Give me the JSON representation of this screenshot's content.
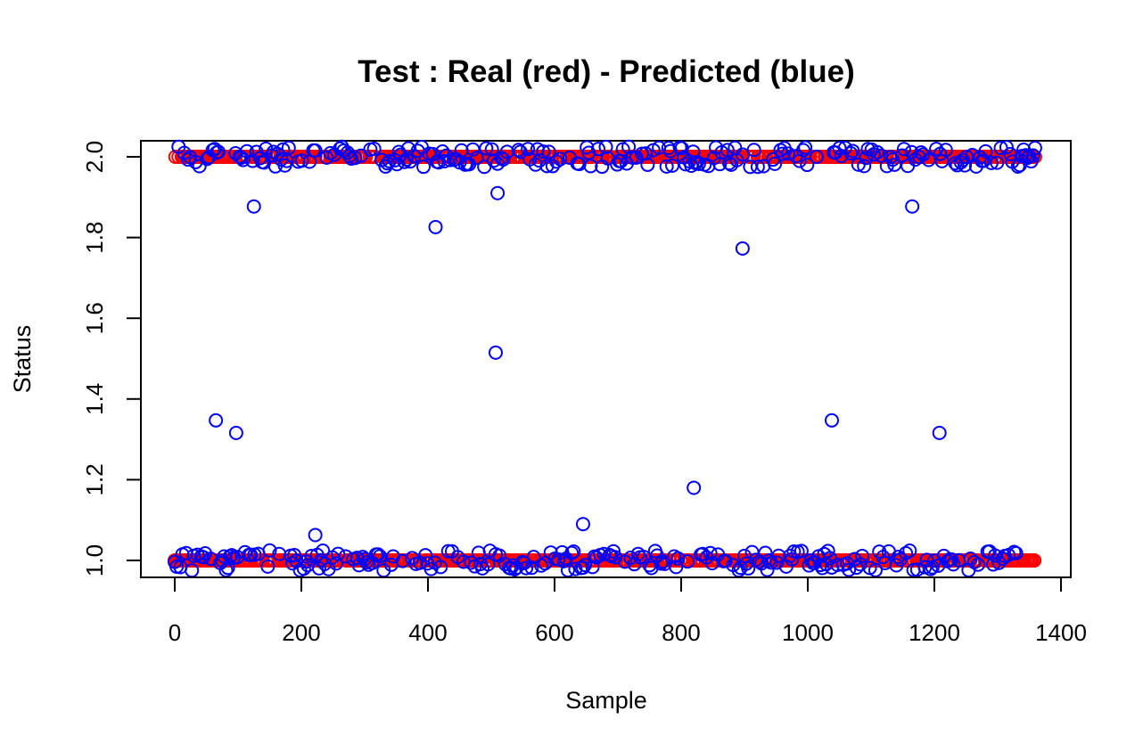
{
  "chart_data": {
    "type": "scatter",
    "title": "Test : Real (red) - Predicted (blue)",
    "xlabel": "Sample",
    "ylabel": "Status",
    "xlim": [
      0,
      1360
    ],
    "ylim": [
      1.0,
      2.0
    ],
    "x_ticks": [
      "0",
      "200",
      "400",
      "600",
      "800",
      "1000",
      "1200",
      "1400"
    ],
    "y_ticks": [
      "1.0",
      "1.2",
      "1.4",
      "1.6",
      "1.8",
      "2.0"
    ],
    "grid": false,
    "legend": "none",
    "colors": {
      "real": "#ff0000",
      "predicted": "#0000ff"
    },
    "series": [
      {
        "color": "#ff0000",
        "description_from_title": "Real",
        "values_levels": [
          1,
          2
        ],
        "n_points": 1360
      },
      {
        "color": "#0000ff",
        "description_from_title": "Predicted",
        "outliers": [
          {
            "x": 125,
            "y": 1.877
          },
          {
            "x": 65,
            "y": 1.347
          },
          {
            "x": 97,
            "y": 1.316
          },
          {
            "x": 222,
            "y": 1.063
          },
          {
            "x": 412,
            "y": 1.826
          },
          {
            "x": 507,
            "y": 1.515
          },
          {
            "x": 510,
            "y": 1.91
          },
          {
            "x": 645,
            "y": 1.09
          },
          {
            "x": 820,
            "y": 1.18
          },
          {
            "x": 897,
            "y": 1.773
          },
          {
            "x": 1038,
            "y": 1.347
          },
          {
            "x": 1165,
            "y": 1.877
          },
          {
            "x": 1208,
            "y": 1.316
          }
        ]
      }
    ]
  }
}
